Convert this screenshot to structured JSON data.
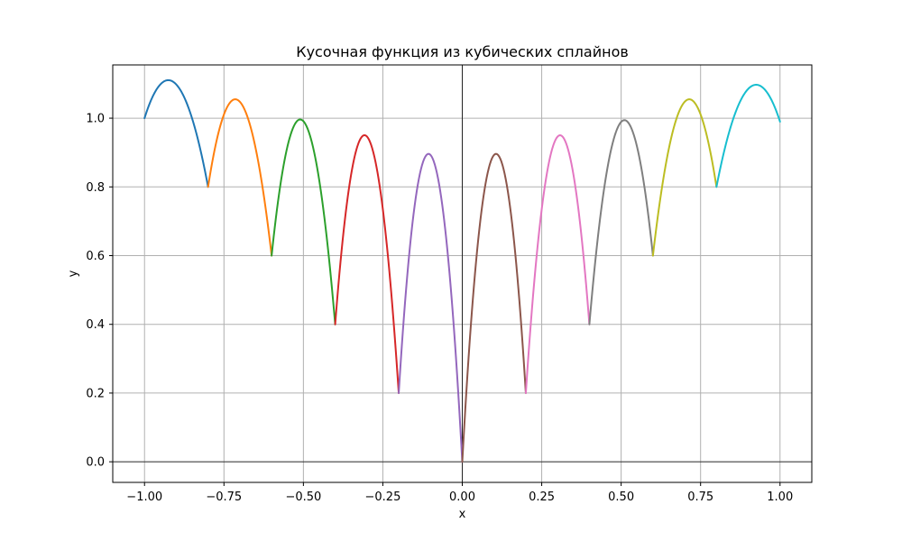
{
  "chart_data": {
    "type": "line",
    "title": "Кусочная функция из кубических сплайнов",
    "xlabel": "x",
    "ylabel": "y",
    "xlim": [
      -1.1,
      1.1
    ],
    "ylim": [
      -0.06,
      1.155
    ],
    "xticks": [
      -1.0,
      -0.75,
      -0.5,
      -0.25,
      0.0,
      0.25,
      0.5,
      0.75,
      1.0
    ],
    "xtick_labels": [
      "−1.00",
      "−0.75",
      "−0.50",
      "−0.25",
      "0.00",
      "0.25",
      "0.50",
      "0.75",
      "1.00"
    ],
    "yticks": [
      0.0,
      0.2,
      0.4,
      0.6,
      0.8,
      1.0
    ],
    "ytick_labels": [
      "0.0",
      "0.2",
      "0.4",
      "0.6",
      "0.8",
      "1.0"
    ],
    "grid": true,
    "reference_lines": {
      "x": 0,
      "y": 0
    },
    "series": [
      {
        "color": "#1f77b4",
        "points": [
          [
            -1.0,
            1.0
          ],
          [
            -0.9,
            1.098
          ],
          [
            -0.8,
            0.8
          ]
        ]
      },
      {
        "color": "#ff7f0e",
        "points": [
          [
            -0.8,
            0.8
          ],
          [
            -0.715,
            1.055
          ],
          [
            -0.6,
            0.6
          ]
        ]
      },
      {
        "color": "#2ca02c",
        "points": [
          [
            -0.6,
            0.6
          ],
          [
            -0.505,
            0.995
          ],
          [
            -0.4,
            0.4
          ]
        ]
      },
      {
        "color": "#d62728",
        "points": [
          [
            -0.4,
            0.4
          ],
          [
            -0.305,
            0.95
          ],
          [
            -0.2,
            0.2
          ]
        ]
      },
      {
        "color": "#9467bd",
        "points": [
          [
            -0.2,
            0.2
          ],
          [
            -0.1,
            0.893
          ],
          [
            0.0,
            0.0
          ]
        ]
      },
      {
        "color": "#8c564b",
        "points": [
          [
            0.0,
            0.0
          ],
          [
            0.1,
            0.893
          ],
          [
            0.2,
            0.2
          ]
        ]
      },
      {
        "color": "#e377c2",
        "points": [
          [
            0.2,
            0.2
          ],
          [
            0.31,
            0.95
          ],
          [
            0.4,
            0.4
          ]
        ]
      },
      {
        "color": "#7f7f7f",
        "points": [
          [
            0.4,
            0.4
          ],
          [
            0.505,
            0.993
          ],
          [
            0.6,
            0.6
          ]
        ]
      },
      {
        "color": "#bcbd22",
        "points": [
          [
            0.6,
            0.6
          ],
          [
            0.715,
            1.055
          ],
          [
            0.8,
            0.8
          ]
        ]
      },
      {
        "color": "#17becf",
        "points": [
          [
            0.8,
            0.8
          ],
          [
            0.91,
            1.093
          ],
          [
            1.0,
            0.99
          ]
        ]
      }
    ]
  }
}
